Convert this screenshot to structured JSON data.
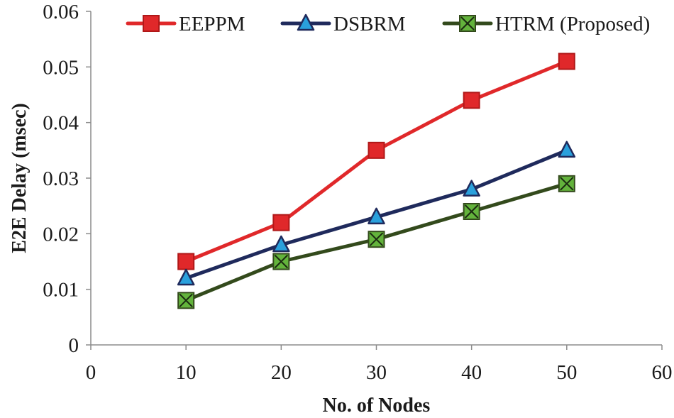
{
  "chart_data": {
    "type": "line",
    "title": "",
    "xlabel": "No. of Nodes",
    "ylabel": "E2E Delay (msec)",
    "xlim": [
      0,
      60
    ],
    "ylim": [
      0,
      0.06
    ],
    "x_ticks": [
      "0",
      "10",
      "20",
      "30",
      "40",
      "50",
      "60"
    ],
    "y_ticks": [
      "0",
      "0.01",
      "0.02",
      "0.03",
      "0.04",
      "0.05",
      "0.06"
    ],
    "x_tick_values": [
      0,
      10,
      20,
      30,
      40,
      50,
      60
    ],
    "y_tick_values": [
      0,
      0.01,
      0.02,
      0.03,
      0.04,
      0.05,
      0.06
    ],
    "grid": false,
    "legend_position": "top",
    "x": [
      10,
      20,
      30,
      40,
      50
    ],
    "series": [
      {
        "name": "EEPPM",
        "values": [
          0.015,
          0.022,
          0.035,
          0.044,
          0.051
        ],
        "color": "#e0282a",
        "marker": "square"
      },
      {
        "name": "DSBRM",
        "values": [
          0.012,
          0.018,
          0.023,
          0.028,
          0.035
        ],
        "color": "#1f2a5c",
        "marker": "triangle"
      },
      {
        "name": "HTRM (Proposed)",
        "values": [
          0.008,
          0.015,
          0.019,
          0.024,
          0.029
        ],
        "color": "#334a1c",
        "marker": "x-square"
      }
    ]
  },
  "colors": {
    "triangle_fill": "#2aa0dc",
    "xsquare_fill": "#63b33c",
    "square_fill": "#e0282a",
    "axis": "#8c8c8c"
  }
}
